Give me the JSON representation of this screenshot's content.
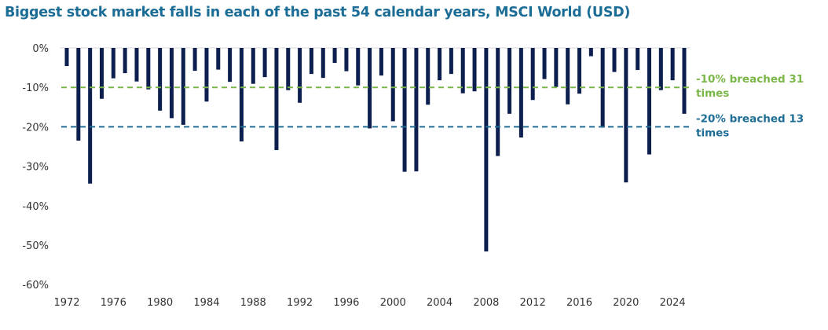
{
  "chart_data": {
    "type": "bar",
    "title": "Biggest stock market falls in each of the past 54 calendar years, MSCI World (USD)",
    "xlabel": "",
    "ylabel": "",
    "categories": [
      1972,
      1973,
      1974,
      1975,
      1976,
      1977,
      1978,
      1979,
      1980,
      1981,
      1982,
      1983,
      1984,
      1985,
      1986,
      1987,
      1988,
      1989,
      1990,
      1991,
      1992,
      1993,
      1994,
      1995,
      1996,
      1997,
      1998,
      1999,
      2000,
      2001,
      2002,
      2003,
      2004,
      2005,
      2006,
      2007,
      2008,
      2009,
      2010,
      2011,
      2012,
      2013,
      2014,
      2015,
      2016,
      2017,
      2018,
      2019,
      2020,
      2021,
      2022,
      2023,
      2024,
      2025
    ],
    "values": [
      -4.6,
      -23.5,
      -34.4,
      -12.9,
      -7.7,
      -6.4,
      -8.5,
      -10.5,
      -15.9,
      -17.8,
      -19.5,
      -5.8,
      -13.6,
      -5.5,
      -8.6,
      -23.7,
      -9.1,
      -7.4,
      -25.9,
      -10.7,
      -13.9,
      -6.6,
      -7.6,
      -3.8,
      -5.9,
      -9.5,
      -20.4,
      -7.0,
      -18.6,
      -31.4,
      -31.3,
      -14.4,
      -8.2,
      -6.6,
      -11.5,
      -11.0,
      -51.6,
      -27.4,
      -16.7,
      -22.7,
      -13.2,
      -7.9,
      -9.9,
      -14.3,
      -11.6,
      -2.1,
      -20.2,
      -6.1,
      -34.1,
      -5.6,
      -27.0,
      -10.7,
      -8.2,
      -16.7
    ],
    "ylim": [
      -60,
      0
    ],
    "yticks": [
      "0%",
      "-10%",
      "-20%",
      "-30%",
      "-40%",
      "-50%",
      "-60%"
    ],
    "ytick_values": [
      0,
      -10,
      -20,
      -30,
      -40,
      -50,
      -60
    ],
    "xticks": [
      "1972",
      "1976",
      "1980",
      "1984",
      "1988",
      "1992",
      "1996",
      "2000",
      "2004",
      "2008",
      "2012",
      "2016",
      "2020",
      "2024"
    ],
    "grid": false,
    "reference_lines": [
      {
        "value": -10,
        "label": "-10% breached 31 times",
        "label_lines": [
          "-10% breached 31",
          "times"
        ],
        "color": "#7ab648"
      },
      {
        "value": -20,
        "label": "-20% breached 13 times",
        "label_lines": [
          "-20% breached 13",
          "times"
        ],
        "color": "#1f6e96"
      }
    ],
    "bar_color": "#0c1f4f",
    "title_color": "#1c6d96"
  }
}
